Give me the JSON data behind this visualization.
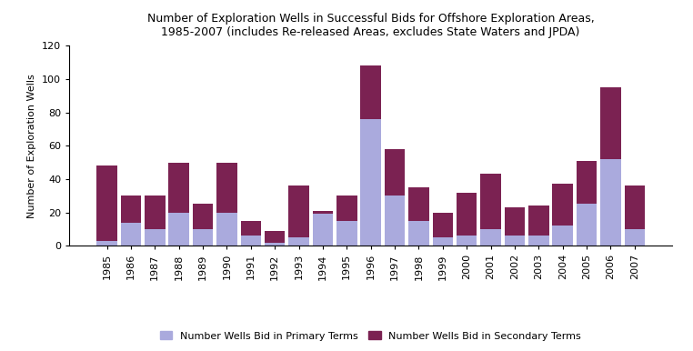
{
  "years": [
    "1985",
    "1986",
    "1987",
    "1988",
    "1989",
    "1990",
    "1991",
    "1992",
    "1993",
    "1994",
    "1995",
    "1996",
    "1997",
    "1998",
    "1999",
    "2000",
    "2001",
    "2002",
    "2003",
    "2004",
    "2005",
    "2006",
    "2007"
  ],
  "primary": [
    3,
    14,
    10,
    20,
    10,
    20,
    6,
    2,
    5,
    19,
    15,
    76,
    30,
    15,
    5,
    6,
    10,
    6,
    6,
    12,
    25,
    52,
    10
  ],
  "secondary": [
    45,
    16,
    20,
    30,
    15,
    30,
    9,
    7,
    31,
    2,
    15,
    32,
    28,
    20,
    15,
    26,
    33,
    17,
    18,
    25,
    26,
    43,
    26
  ],
  "primary_color": "#aaaadd",
  "secondary_color": "#7b2252",
  "title_line1": "Number of Exploration Wells in Successful Bids for Offshore Exploration Areas,",
  "title_line2": "1985-2007 (includes Re-released Areas, excludes State Waters and JPDA)",
  "ylabel": "Number of Exploration Wells",
  "legend_primary": "Number Wells Bid in Primary Terms",
  "legend_secondary": "Number Wells Bid in Secondary Terms",
  "ylim": [
    0,
    120
  ],
  "yticks": [
    0,
    20,
    40,
    60,
    80,
    100,
    120
  ],
  "background_color": "#ffffff",
  "bar_width": 0.85,
  "title_fontsize": 9,
  "axis_fontsize": 8,
  "ylabel_fontsize": 8
}
